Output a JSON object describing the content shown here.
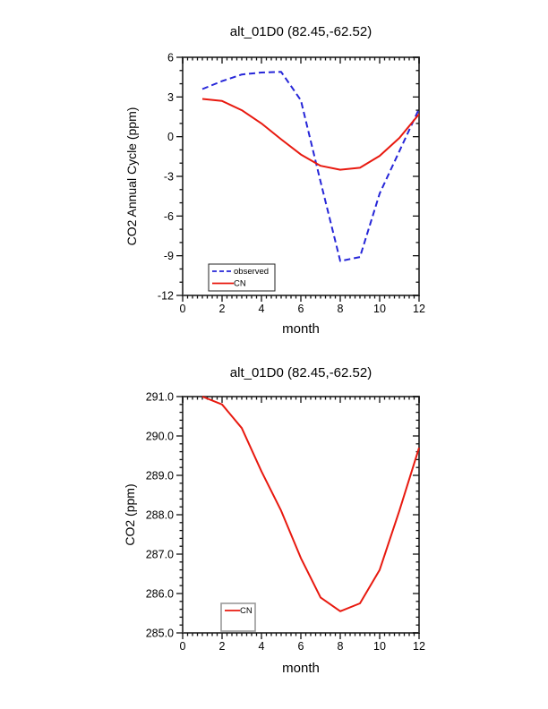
{
  "figure": {
    "background": "#ffffff",
    "frame_color": "#4d4d4d",
    "tick_color": "#111111"
  },
  "chart_data": [
    {
      "type": "line",
      "title": "alt_01D0 (82.45,-62.52)",
      "xlabel": "month",
      "ylabel": "CO2 Annual Cycle (ppm)",
      "xlim": [
        0,
        12
      ],
      "ylim": [
        -12,
        6
      ],
      "grid": "off",
      "x_ticks": {
        "values": [
          0,
          2,
          4,
          6,
          8,
          10,
          12
        ],
        "labels": [
          "0",
          "2",
          "4",
          "6",
          "8",
          "10",
          "12"
        ],
        "minor_step": 0.25
      },
      "y_ticks": {
        "values": [
          6,
          3,
          0,
          -3,
          -6,
          -9,
          -12
        ],
        "labels": [
          "6",
          "3",
          "0",
          "-3",
          "-6",
          "-9",
          "-12"
        ],
        "minor_step": 1
      },
      "x": [
        1,
        2,
        3,
        4,
        5,
        6,
        7,
        8,
        9,
        10,
        11,
        12
      ],
      "series": [
        {
          "name": "observed",
          "color": "#2626d8",
          "dash": "7,4",
          "values": [
            3.6,
            4.2,
            4.7,
            4.85,
            4.9,
            2.75,
            -3.4,
            -9.4,
            -9.1,
            -4.3,
            -1.1,
            2.1
          ]
        },
        {
          "name": "CN",
          "color": "#e8190f",
          "dash": "",
          "values": [
            2.85,
            2.7,
            2.0,
            1.0,
            -0.2,
            -1.35,
            -2.2,
            -2.5,
            -2.35,
            -1.45,
            -0.1,
            1.7
          ]
        }
      ],
      "legend": {
        "labels": [
          "observed",
          "CN"
        ],
        "position": "bottom-left"
      }
    },
    {
      "type": "line",
      "title": "alt_01D0 (82.45,-62.52)",
      "xlabel": "month",
      "ylabel": "CO2 (ppm)",
      "xlim": [
        0,
        12
      ],
      "ylim": [
        285.0,
        291.0
      ],
      "grid": "off",
      "x_ticks": {
        "values": [
          0,
          2,
          4,
          6,
          8,
          10,
          12
        ],
        "labels": [
          "0",
          "2",
          "4",
          "6",
          "8",
          "10",
          "12"
        ],
        "minor_step": 0.25
      },
      "y_ticks": {
        "values": [
          291,
          290,
          289,
          288,
          287,
          286,
          285
        ],
        "labels": [
          "291.0",
          "290.0",
          "289.0",
          "288.0",
          "287.0",
          "286.0",
          "285.0"
        ],
        "minor_step": 0.2
      },
      "x": [
        1,
        2,
        3,
        4,
        5,
        6,
        7,
        8,
        9,
        10,
        11,
        12
      ],
      "series": [
        {
          "name": "CN",
          "color": "#e8190f",
          "dash": "",
          "values": [
            291.0,
            290.8,
            290.2,
            289.1,
            288.1,
            286.9,
            285.9,
            285.55,
            285.75,
            286.6,
            288.1,
            289.7
          ]
        }
      ],
      "legend": {
        "labels": [
          "CN"
        ],
        "position": "bottom-left"
      }
    }
  ]
}
